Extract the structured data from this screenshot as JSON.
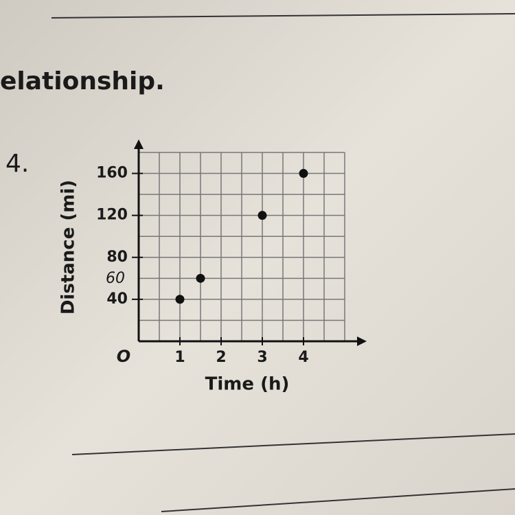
{
  "heading": "elationship.",
  "problem_number": "4.",
  "chart_data": {
    "type": "scatter",
    "x_label": "Time (h)",
    "y_label": "Distance (mi)",
    "origin_label": "O",
    "annotation": "60",
    "x": [
      1,
      1.5,
      3,
      4
    ],
    "values": [
      40,
      60,
      120,
      160
    ],
    "color": "#111111",
    "xlim": [
      0,
      5
    ],
    "ylim": [
      0,
      180
    ],
    "xticks": [
      1,
      2,
      3,
      4
    ],
    "yticks": [
      40,
      80,
      120,
      160
    ],
    "grid": true
  }
}
